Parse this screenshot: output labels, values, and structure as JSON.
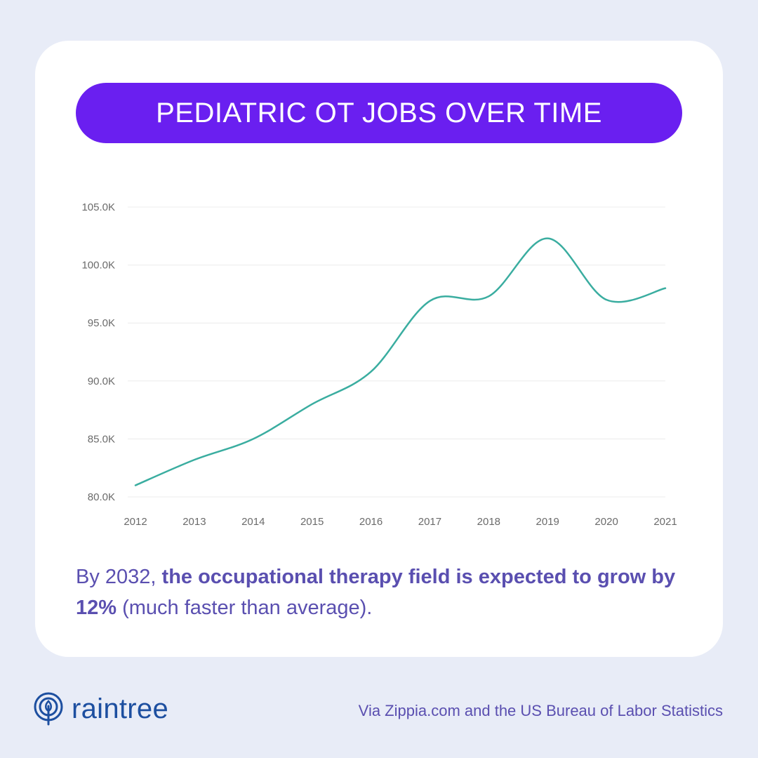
{
  "title": "PEDIATRIC OT JOBS OVER TIME",
  "caption": {
    "lead": "By 2032, ",
    "bold": "the occupational therapy field is expected to grow by 12%",
    "tail": " (much faster than average)."
  },
  "footer": {
    "brand": "raintree",
    "logo_icon": "tree-in-circle-icon",
    "source": "Via Zippia.com and the US Bureau of Labor Statistics"
  },
  "colors": {
    "background": "#e8ecf7",
    "card": "#ffffff",
    "title_pill": "#6a1ff0",
    "title_text": "#ffffff",
    "line": "#3aada0",
    "caption": "#5a4fb0",
    "brand": "#1d4fa0",
    "grid": "#ececec",
    "tick_text": "#6b6b6b"
  },
  "chart_data": {
    "type": "line",
    "x": [
      "2012",
      "2013",
      "2014",
      "2015",
      "2016",
      "2017",
      "2018",
      "2019",
      "2020",
      "2021"
    ],
    "series": [
      {
        "values": [
          81000,
          83200,
          85000,
          88000,
          90800,
          96900,
          97300,
          102300,
          97000,
          98000
        ]
      }
    ],
    "yticks": [
      "80.0K",
      "85.0K",
      "90.0K",
      "95.0K",
      "100.0K",
      "105.0K"
    ],
    "ytick_values": [
      80000,
      85000,
      90000,
      95000,
      100000,
      105000
    ],
    "ylim": [
      80000,
      105000
    ],
    "grid": true,
    "smooth": true
  }
}
